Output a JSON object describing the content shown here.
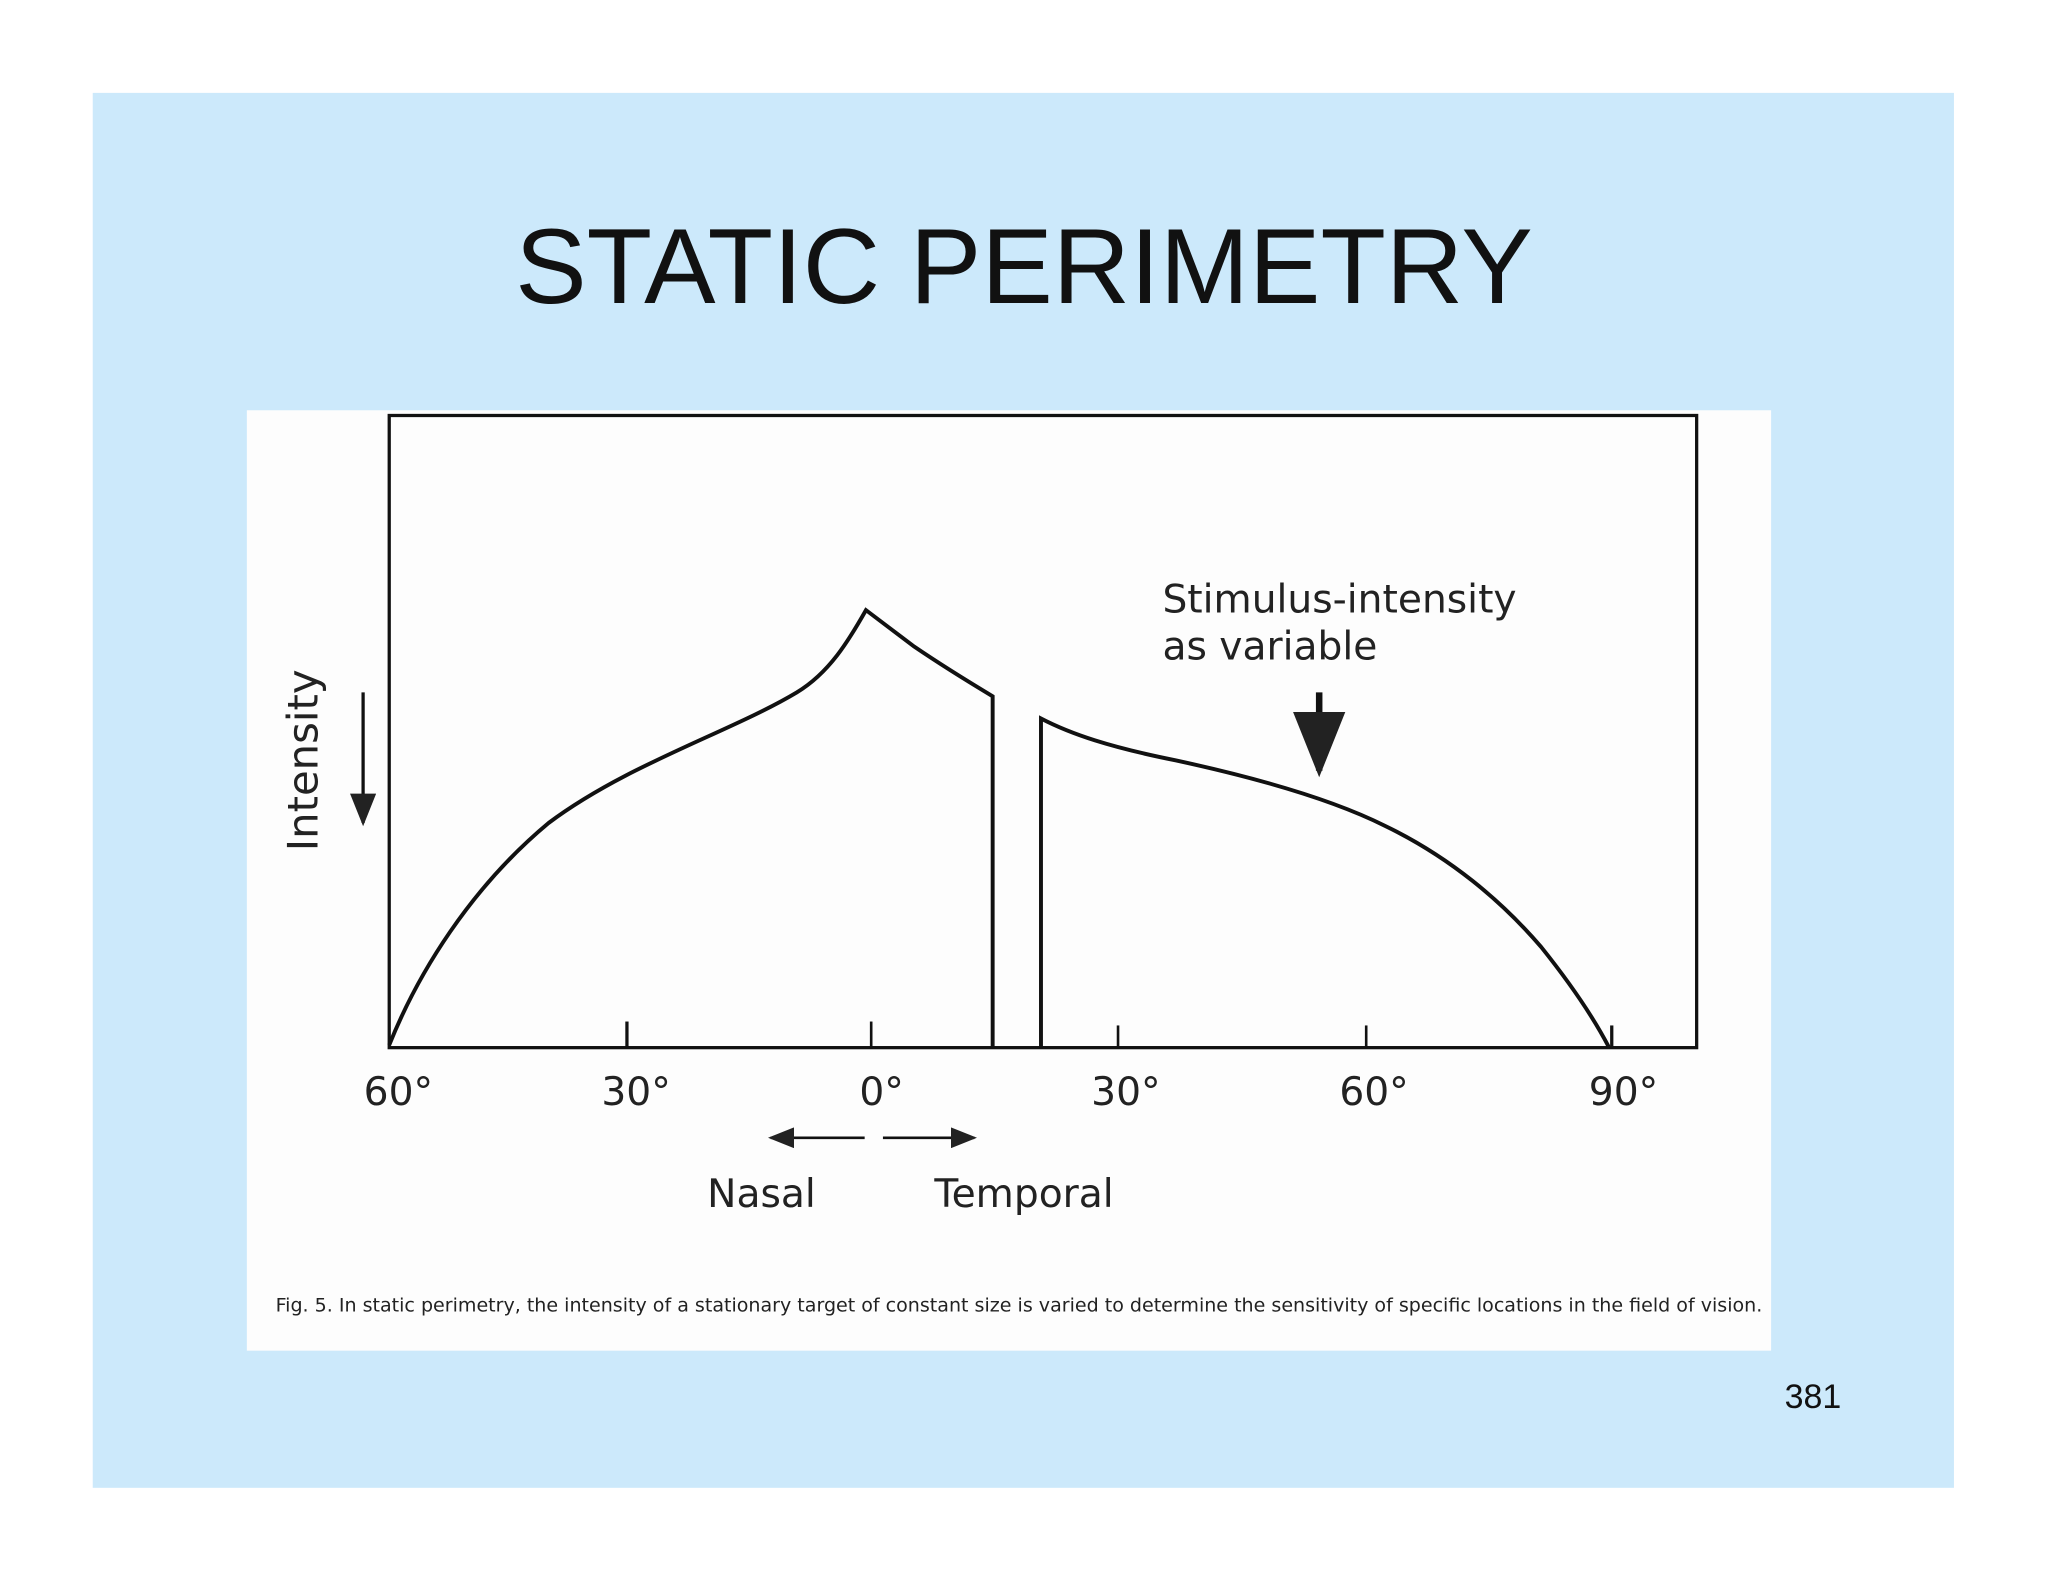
{
  "slide": {
    "title": "STATIC PERIMETRY",
    "page_number": "381"
  },
  "figure": {
    "y_axis_label": "Intensity",
    "x_tick_labels": [
      "60°",
      "30°",
      "0°",
      "30°",
      "60°",
      "90°"
    ],
    "direction_labels": [
      "Nasal",
      "Temporal"
    ],
    "annotation": [
      "Stimulus-intensity",
      "as variable"
    ],
    "caption": "Fig. 5. In static perimetry, the intensity of a stationary target of constant size is varied to determine the sensitivity of specific locations in the field of vision."
  }
}
